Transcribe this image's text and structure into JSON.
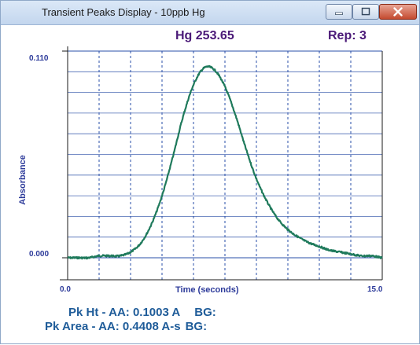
{
  "window": {
    "title": "Transient Peaks Display - 10ppb Hg",
    "controls": [
      "minimize-icon",
      "maximize-icon",
      "close-icon"
    ]
  },
  "header": {
    "element": "Hg 253.65",
    "rep": "Rep: 3"
  },
  "readouts": {
    "pk_ht": "Pk Ht - AA: 0.1003 A",
    "pk_ht_bg": "BG:",
    "pk_area": "Pk Area - AA: 0.4408 A-s",
    "pk_area_bg": "BG:"
  },
  "colors": {
    "trace": "#1f7a5c",
    "grid": "#2a4fa8",
    "axis_text": "#2c3a9a",
    "header_text": "#4b1a78",
    "readout_text": "#1f5c99"
  },
  "chart_data": {
    "type": "line",
    "xlabel": "Time (seconds)",
    "ylabel": "Absorbance",
    "xlim": [
      0.0,
      15.0
    ],
    "ylim": [
      0.0,
      0.11
    ],
    "x_tick_labels": [
      "0.0",
      "15.0"
    ],
    "y_tick_labels": [
      "0.000",
      "0.110"
    ],
    "grid": true,
    "series": [
      {
        "x": [
          0.0,
          0.5,
          1.0,
          1.5,
          2.0,
          2.5,
          3.0,
          3.5,
          4.0,
          4.5,
          5.0,
          5.5,
          6.0,
          6.5,
          7.0,
          7.5,
          8.0,
          8.5,
          9.0,
          9.5,
          10.0,
          10.5,
          11.0,
          11.5,
          12.0,
          12.5,
          13.0,
          13.5,
          14.0,
          14.5,
          15.0
        ],
        "y": [
          0.0,
          0.0,
          0.0,
          0.001,
          0.001,
          0.001,
          0.003,
          0.008,
          0.018,
          0.033,
          0.053,
          0.075,
          0.092,
          0.101,
          0.1,
          0.091,
          0.076,
          0.058,
          0.042,
          0.03,
          0.021,
          0.015,
          0.011,
          0.008,
          0.006,
          0.004,
          0.003,
          0.002,
          0.001,
          0.001,
          0.0
        ]
      }
    ]
  }
}
